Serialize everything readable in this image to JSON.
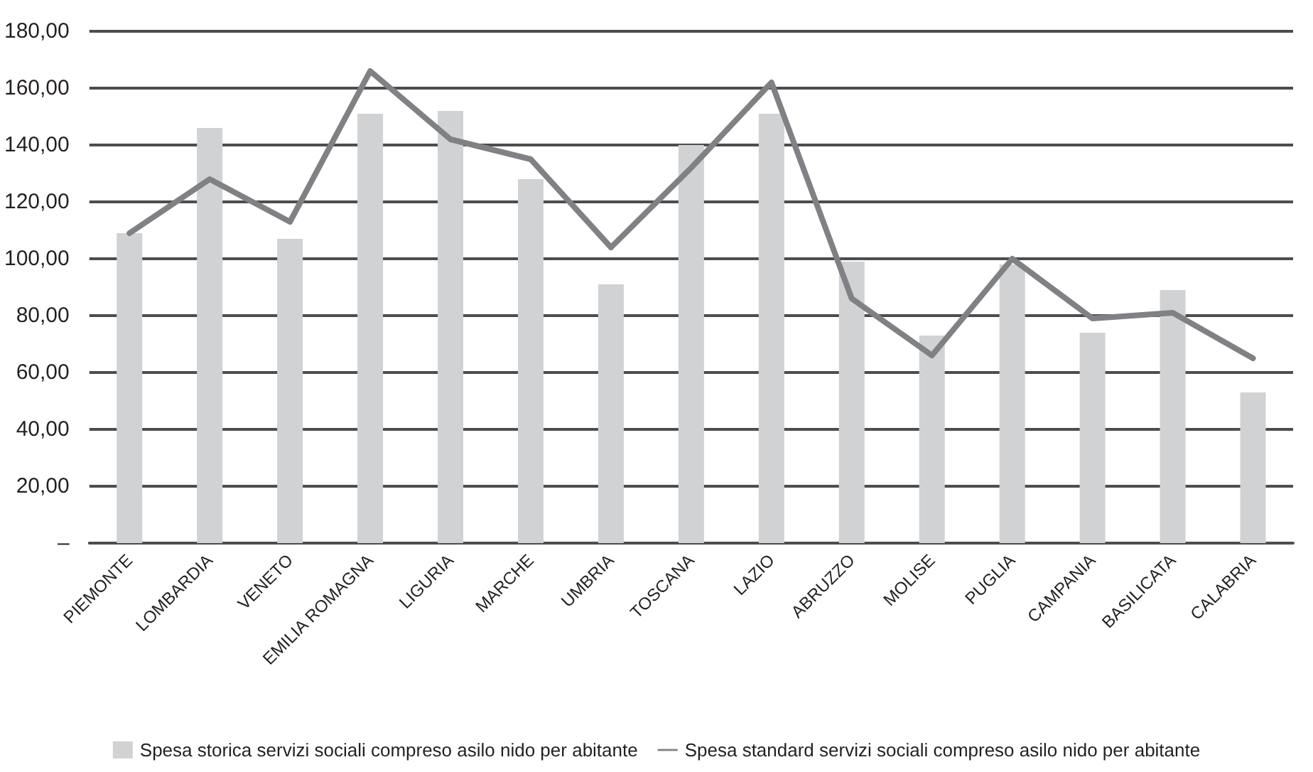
{
  "chart_data": {
    "type": "bar",
    "categories": [
      "PIEMONTE",
      "LOMBARDIA",
      "VENETO",
      "EMILIA ROMAGNA",
      "LIGURIA",
      "MARCHE",
      "UMBRIA",
      "TOSCANA",
      "LAZIO",
      "ABRUZZO",
      "MOLISE",
      "PUGLIA",
      "CAMPANIA",
      "BASILICATA",
      "CALABRIA"
    ],
    "series": [
      {
        "name": "Spesa storica servizi sociali compreso asilo nido per abitante",
        "color": "#d1d2d4",
        "values": [
          109,
          146,
          107,
          151,
          152,
          128,
          91,
          140,
          151,
          99,
          73,
          98,
          74,
          89,
          53
        ]
      },
      {
        "name": "Spesa standard servizi sociali compreso asilo nido per abitante",
        "type": "line",
        "color": "#808184",
        "values": [
          109,
          128,
          113,
          166,
          142,
          135,
          104,
          132,
          162,
          86,
          66,
          100,
          79,
          81,
          65
        ]
      }
    ],
    "ylim": [
      0,
      180
    ],
    "yticks": [
      {
        "value": 0,
        "label": "–"
      },
      {
        "value": 20,
        "label": "20,00"
      },
      {
        "value": 40,
        "label": "40,00"
      },
      {
        "value": 60,
        "label": "60,00"
      },
      {
        "value": 80,
        "label": "80,00"
      },
      {
        "value": 100,
        "label": "100,00"
      },
      {
        "value": 120,
        "label": "120,00"
      },
      {
        "value": 140,
        "label": "140,00"
      },
      {
        "value": 160,
        "label": "160,00"
      },
      {
        "value": 180,
        "label": "180,00"
      }
    ],
    "grid": "y",
    "legend": "bottom",
    "marker": "none",
    "line_style": "solid"
  }
}
